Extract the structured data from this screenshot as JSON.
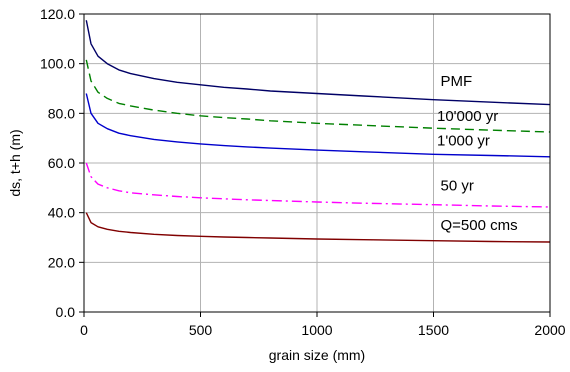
{
  "chart_data": {
    "type": "line",
    "title": "",
    "xlabel": "grain size (mm)",
    "ylabel": "ds, t+h (m)",
    "xlim": [
      0,
      2000
    ],
    "ylim": [
      0,
      120
    ],
    "x_ticks": [
      "0",
      "500",
      "1000",
      "1500",
      "2000"
    ],
    "y_ticks": [
      "0.0",
      "20.0",
      "40.0",
      "60.0",
      "80.0",
      "100.0",
      "120.0"
    ],
    "grid": true,
    "legend": "inline labels",
    "x": [
      10,
      30,
      60,
      100,
      150,
      200,
      300,
      400,
      500,
      600,
      700,
      800,
      1000,
      1200,
      1500,
      1750,
      2000
    ],
    "series": [
      {
        "name": "PMF",
        "color": "#000066",
        "dash": "solid",
        "values": [
          117.5,
          108.0,
          103.0,
          100.0,
          97.5,
          96.0,
          94.0,
          92.5,
          91.5,
          90.5,
          89.8,
          89.0,
          88.0,
          87.0,
          85.5,
          84.5,
          83.5
        ]
      },
      {
        "name": "10'000 yr",
        "color": "#008000",
        "dash": "dash",
        "values": [
          101.5,
          93.0,
          88.5,
          86.0,
          84.0,
          83.0,
          81.3,
          80.0,
          79.0,
          78.3,
          77.7,
          77.0,
          76.0,
          75.2,
          74.0,
          73.2,
          72.5
        ]
      },
      {
        "name": "1'000 yr",
        "color": "#0000CC",
        "dash": "solid",
        "values": [
          88.0,
          80.0,
          76.0,
          73.8,
          72.0,
          71.0,
          69.5,
          68.5,
          67.7,
          67.0,
          66.5,
          66.0,
          65.2,
          64.5,
          63.5,
          63.0,
          62.5
        ]
      },
      {
        "name": "50 yr",
        "color": "#FF00FF",
        "dash": "dashdot",
        "values": [
          60.0,
          54.5,
          51.5,
          50.0,
          48.8,
          48.0,
          47.2,
          46.5,
          46.0,
          45.6,
          45.2,
          44.9,
          44.3,
          43.8,
          43.2,
          42.7,
          42.3
        ]
      },
      {
        "name": "Q=500 cms",
        "color": "#800000",
        "dash": "solid",
        "values": [
          40.0,
          36.0,
          34.3,
          33.3,
          32.5,
          32.0,
          31.3,
          30.8,
          30.5,
          30.2,
          30.0,
          29.8,
          29.4,
          29.1,
          28.7,
          28.4,
          28.2
        ]
      }
    ]
  }
}
